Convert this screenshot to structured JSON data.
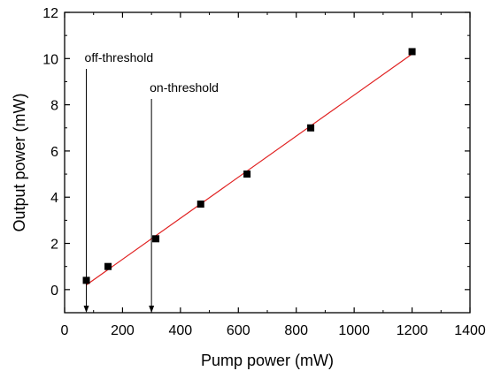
{
  "chart_data": {
    "type": "scatter",
    "xlabel": "Pump power (mW)",
    "ylabel": "Output power (mW)",
    "xlim": [
      0,
      1400
    ],
    "ylim": [
      -1,
      12
    ],
    "xticks": [
      0,
      200,
      400,
      600,
      800,
      1000,
      1200,
      1400
    ],
    "yticks": [
      0,
      2,
      4,
      6,
      8,
      10,
      12
    ],
    "grid": false,
    "series": [
      {
        "marker": "square",
        "color": "#000000",
        "points": [
          {
            "x": 75,
            "y": 0.4
          },
          {
            "x": 150,
            "y": 1.0
          },
          {
            "x": 315,
            "y": 2.2
          },
          {
            "x": 470,
            "y": 3.7
          },
          {
            "x": 630,
            "y": 5.0
          },
          {
            "x": 850,
            "y": 7.0
          },
          {
            "x": 1200,
            "y": 10.3
          }
        ]
      }
    ],
    "fit_line": {
      "color": "#e02020",
      "x": [
        75,
        1200
      ],
      "y": [
        0.2,
        10.2
      ]
    },
    "annotations": [
      {
        "text": "off-threshold",
        "x": 75
      },
      {
        "text": "on-threshold",
        "x": 300
      }
    ]
  }
}
